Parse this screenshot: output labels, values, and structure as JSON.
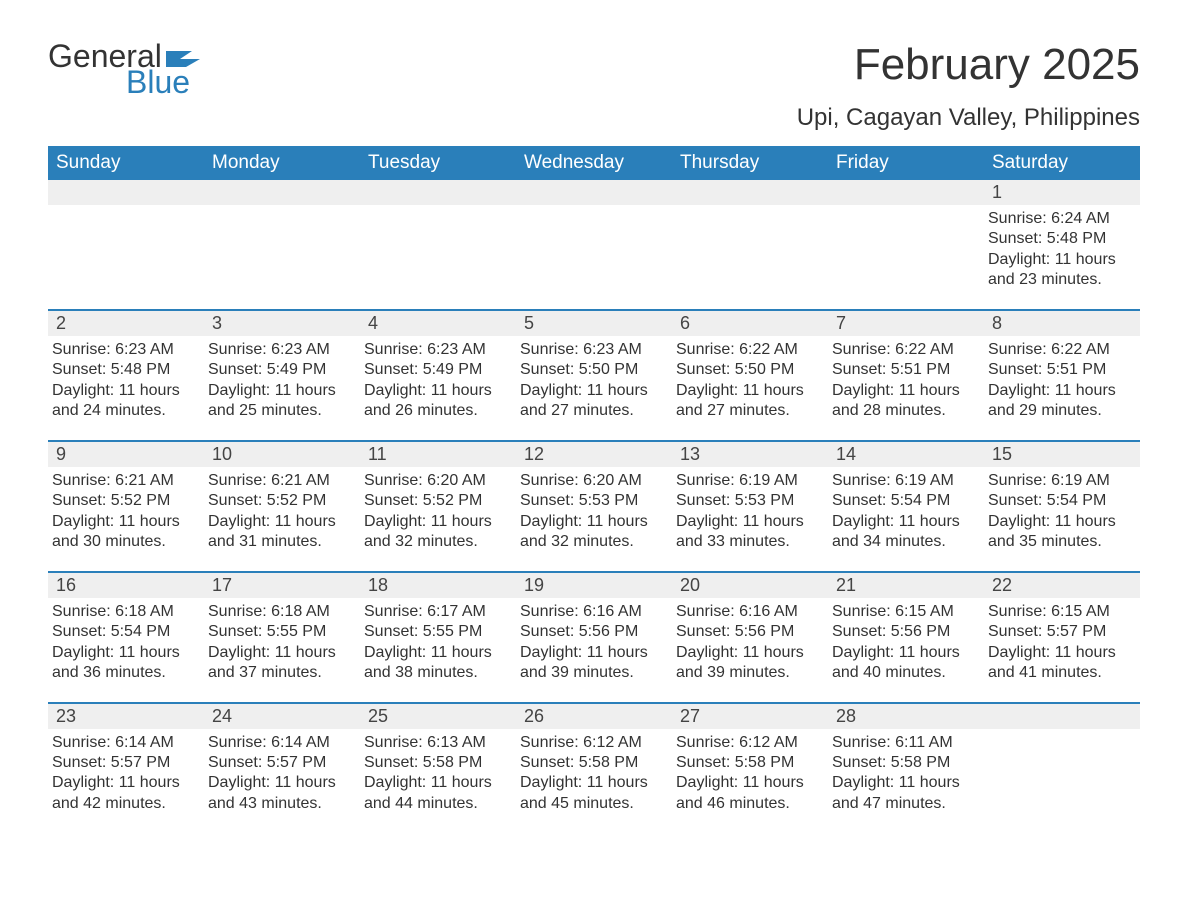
{
  "logo": {
    "word1": "General",
    "word2": "Blue",
    "text_color": "#333333",
    "accent_color": "#2a7fba"
  },
  "header": {
    "month_title": "February 2025",
    "location": "Upi, Cagayan Valley, Philippines"
  },
  "styling": {
    "header_bg": "#2a7fba",
    "header_text": "#ffffff",
    "daynum_bg": "#efefef",
    "week_border": "#2a7fba",
    "body_text": "#333333",
    "page_bg": "#ffffff",
    "header_fontsize": 19,
    "daynum_fontsize": 18,
    "info_fontsize": 16,
    "title_fontsize": 44,
    "location_fontsize": 24
  },
  "daynames": [
    "Sunday",
    "Monday",
    "Tuesday",
    "Wednesday",
    "Thursday",
    "Friday",
    "Saturday"
  ],
  "weeks": [
    [
      null,
      null,
      null,
      null,
      null,
      null,
      {
        "n": "1",
        "sr": "6:24 AM",
        "ss": "5:48 PM",
        "dl": "11 hours and 23 minutes."
      }
    ],
    [
      {
        "n": "2",
        "sr": "6:23 AM",
        "ss": "5:48 PM",
        "dl": "11 hours and 24 minutes."
      },
      {
        "n": "3",
        "sr": "6:23 AM",
        "ss": "5:49 PM",
        "dl": "11 hours and 25 minutes."
      },
      {
        "n": "4",
        "sr": "6:23 AM",
        "ss": "5:49 PM",
        "dl": "11 hours and 26 minutes."
      },
      {
        "n": "5",
        "sr": "6:23 AM",
        "ss": "5:50 PM",
        "dl": "11 hours and 27 minutes."
      },
      {
        "n": "6",
        "sr": "6:22 AM",
        "ss": "5:50 PM",
        "dl": "11 hours and 27 minutes."
      },
      {
        "n": "7",
        "sr": "6:22 AM",
        "ss": "5:51 PM",
        "dl": "11 hours and 28 minutes."
      },
      {
        "n": "8",
        "sr": "6:22 AM",
        "ss": "5:51 PM",
        "dl": "11 hours and 29 minutes."
      }
    ],
    [
      {
        "n": "9",
        "sr": "6:21 AM",
        "ss": "5:52 PM",
        "dl": "11 hours and 30 minutes."
      },
      {
        "n": "10",
        "sr": "6:21 AM",
        "ss": "5:52 PM",
        "dl": "11 hours and 31 minutes."
      },
      {
        "n": "11",
        "sr": "6:20 AM",
        "ss": "5:52 PM",
        "dl": "11 hours and 32 minutes."
      },
      {
        "n": "12",
        "sr": "6:20 AM",
        "ss": "5:53 PM",
        "dl": "11 hours and 32 minutes."
      },
      {
        "n": "13",
        "sr": "6:19 AM",
        "ss": "5:53 PM",
        "dl": "11 hours and 33 minutes."
      },
      {
        "n": "14",
        "sr": "6:19 AM",
        "ss": "5:54 PM",
        "dl": "11 hours and 34 minutes."
      },
      {
        "n": "15",
        "sr": "6:19 AM",
        "ss": "5:54 PM",
        "dl": "11 hours and 35 minutes."
      }
    ],
    [
      {
        "n": "16",
        "sr": "6:18 AM",
        "ss": "5:54 PM",
        "dl": "11 hours and 36 minutes."
      },
      {
        "n": "17",
        "sr": "6:18 AM",
        "ss": "5:55 PM",
        "dl": "11 hours and 37 minutes."
      },
      {
        "n": "18",
        "sr": "6:17 AM",
        "ss": "5:55 PM",
        "dl": "11 hours and 38 minutes."
      },
      {
        "n": "19",
        "sr": "6:16 AM",
        "ss": "5:56 PM",
        "dl": "11 hours and 39 minutes."
      },
      {
        "n": "20",
        "sr": "6:16 AM",
        "ss": "5:56 PM",
        "dl": "11 hours and 39 minutes."
      },
      {
        "n": "21",
        "sr": "6:15 AM",
        "ss": "5:56 PM",
        "dl": "11 hours and 40 minutes."
      },
      {
        "n": "22",
        "sr": "6:15 AM",
        "ss": "5:57 PM",
        "dl": "11 hours and 41 minutes."
      }
    ],
    [
      {
        "n": "23",
        "sr": "6:14 AM",
        "ss": "5:57 PM",
        "dl": "11 hours and 42 minutes."
      },
      {
        "n": "24",
        "sr": "6:14 AM",
        "ss": "5:57 PM",
        "dl": "11 hours and 43 minutes."
      },
      {
        "n": "25",
        "sr": "6:13 AM",
        "ss": "5:58 PM",
        "dl": "11 hours and 44 minutes."
      },
      {
        "n": "26",
        "sr": "6:12 AM",
        "ss": "5:58 PM",
        "dl": "11 hours and 45 minutes."
      },
      {
        "n": "27",
        "sr": "6:12 AM",
        "ss": "5:58 PM",
        "dl": "11 hours and 46 minutes."
      },
      {
        "n": "28",
        "sr": "6:11 AM",
        "ss": "5:58 PM",
        "dl": "11 hours and 47 minutes."
      },
      null
    ]
  ],
  "labels": {
    "sunrise": "Sunrise:",
    "sunset": "Sunset:",
    "daylight": "Daylight:"
  }
}
